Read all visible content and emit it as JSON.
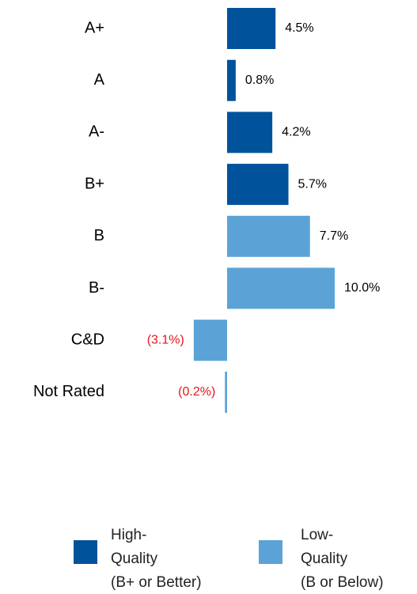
{
  "chart_data": {
    "type": "hbar",
    "categories": [
      "A+",
      "A",
      "A-",
      "B+",
      "B",
      "B-",
      "C&D",
      "Not Rated"
    ],
    "series": [
      {
        "name": "High-\nQuality\n(B+ or Better)",
        "color": "#00529b",
        "values": [
          4.5,
          0.8,
          4.2,
          5.7,
          null,
          null,
          null,
          null
        ],
        "value_labels": [
          "4.5%",
          "0.8%",
          "4.2%",
          "5.7%",
          null,
          null,
          null,
          null
        ]
      },
      {
        "name": "Low-\nQuality\n(B or Below)",
        "color": "#5ba3d6",
        "values": [
          null,
          null,
          null,
          null,
          7.7,
          10.0,
          -3.1,
          -0.2
        ],
        "value_labels": [
          null,
          null,
          null,
          null,
          "7.7%",
          "10.0%",
          "(3.1%)",
          "(0.2%)"
        ]
      }
    ]
  }
}
